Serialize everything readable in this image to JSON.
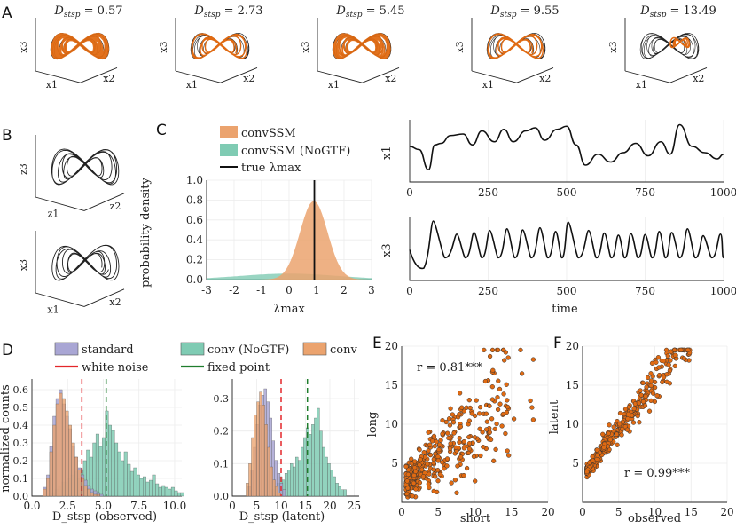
{
  "panels": {
    "A": "A",
    "B": "B",
    "C": "C",
    "D": "D",
    "E": "E",
    "F": "F"
  },
  "colors": {
    "orange": "#e06a12",
    "orange_fill": "#eba36e",
    "teal_fill": "#7fcbb3",
    "purple_fill": "#a9a6d4",
    "red": "#e3262a",
    "green": "#1f7d2d",
    "black": "#111111",
    "grid": "#ececec"
  },
  "panel_a": {
    "titles": [
      "D_stsp = 0.57",
      "D_stsp = 2.73",
      "D_stsp = 5.45",
      "D_stsp = 9.55",
      "D_stsp = 13.49"
    ],
    "title_values": [
      "0.57",
      "2.73",
      "5.45",
      "9.55",
      "13.49"
    ],
    "axis_labels": {
      "x1": "x1",
      "x2": "x2",
      "x3": "x3"
    },
    "orange_weight": [
      0.95,
      0.4,
      0.75,
      0.35,
      0.08
    ]
  },
  "panel_b": {
    "top_axes": {
      "vertical": "z3",
      "left": "z1",
      "right": "z2"
    },
    "bottom_axes": {
      "vertical": "x3",
      "left": "x1",
      "right": "x2"
    }
  },
  "chart_data": [
    {
      "id": "C-density",
      "type": "area",
      "title": "",
      "xlabel": "λmax",
      "ylabel": "probability density",
      "xlim": [
        -3,
        3
      ],
      "ylim": [
        0,
        1.0
      ],
      "xticks": [
        "-3",
        "-2",
        "-1",
        "0",
        "1",
        "2",
        "3"
      ],
      "yticks": [
        "0.0",
        "0.2",
        "0.4",
        "0.6",
        "0.8",
        "1.0"
      ],
      "legend": [
        "convSSM",
        "convSSM (NoGTF)",
        "true λmax"
      ],
      "series": [
        {
          "name": "convSSM",
          "mean": 0.9,
          "sd": 0.5,
          "peak": 0.79
        },
        {
          "name": "convSSM (NoGTF)",
          "mean": 0.0,
          "sd": 1.8,
          "peak": 0.06
        }
      ],
      "true_lambda_max": 0.92
    },
    {
      "id": "C-x1-trace",
      "type": "line",
      "ylabel": "x1",
      "xlim": [
        0,
        1000
      ],
      "xticks": [
        "0",
        "250",
        "500",
        "750",
        "1000"
      ],
      "x": [
        0,
        30,
        60,
        80,
        100,
        130,
        170,
        200,
        230,
        270,
        300,
        330,
        370,
        400,
        430,
        470,
        500,
        530,
        560,
        600,
        640,
        680,
        720,
        760,
        800,
        830,
        860,
        900,
        940,
        980,
        1000
      ],
      "y": [
        0.2,
        0.0,
        -1.3,
        0.3,
        0.4,
        0.9,
        1.0,
        0.3,
        1.2,
        0.5,
        1.3,
        0.5,
        1.2,
        1.4,
        0.6,
        1.3,
        1.5,
        0.3,
        -1.0,
        -0.3,
        -0.8,
        -0.2,
        0.4,
        -0.4,
        0.5,
        -0.3,
        1.6,
        0.2,
        -0.2,
        -0.6,
        -0.3
      ]
    },
    {
      "id": "C-x3-trace",
      "type": "line",
      "ylabel": "x3",
      "xlabel": "time",
      "xlim": [
        0,
        1000
      ],
      "xticks": [
        "0",
        "250",
        "500",
        "750",
        "1000"
      ],
      "peak_times": [
        75,
        150,
        205,
        255,
        310,
        360,
        415,
        465,
        505,
        570,
        620,
        665,
        705,
        750,
        795,
        835,
        885,
        935,
        990
      ],
      "peak_heights": [
        1.0,
        0.75,
        0.78,
        0.82,
        0.85,
        0.83,
        0.87,
        0.8,
        0.98,
        0.82,
        0.77,
        0.73,
        0.76,
        0.74,
        0.8,
        0.78,
        0.85,
        0.72,
        0.75
      ],
      "baseline": 0.28
    },
    {
      "id": "D-observed",
      "type": "bar",
      "xlabel": "D_stsp (observed)",
      "ylabel": "normalized counts",
      "xlim": [
        0,
        10.5
      ],
      "ylim": [
        0,
        0.66
      ],
      "xticks": [
        "0.0",
        "2.5",
        "5.0",
        "7.5",
        "10.0"
      ],
      "yticks": [
        "0.0",
        "0.1",
        "0.2",
        "0.3",
        "0.4",
        "0.5",
        "0.6"
      ],
      "bin_edges_start": 0.8,
      "bin_width": 0.22,
      "series": [
        {
          "name": "standard",
          "values": [
            0.05,
            0.12,
            0.28,
            0.45,
            0.55,
            0.6,
            0.52,
            0.45,
            0.38,
            0.28,
            0.22,
            0.16,
            0.12,
            0.09,
            0.06,
            0.04,
            0.03,
            0.02,
            0.01
          ]
        },
        {
          "name": "conv",
          "values": [
            0.04,
            0.1,
            0.25,
            0.4,
            0.52,
            0.58,
            0.55,
            0.48,
            0.4,
            0.3,
            0.22,
            0.15,
            0.1,
            0.06,
            0.04,
            0.02,
            0.01,
            0.01,
            0.0
          ]
        },
        {
          "name": "conv (NoGTF)",
          "start": 1.4,
          "values": [
            0.02,
            0.04,
            0.06,
            0.08,
            0.08,
            0.1,
            0.12,
            0.14,
            0.1,
            0.15,
            0.2,
            0.26,
            0.22,
            0.3,
            0.35,
            0.28,
            0.33,
            0.48,
            0.4,
            0.37,
            0.3,
            0.25,
            0.2,
            0.25,
            0.18,
            0.14,
            0.16,
            0.12,
            0.1,
            0.11,
            0.08,
            0.09,
            0.12,
            0.07,
            0.05,
            0.06,
            0.05,
            0.04,
            0.05,
            0.03,
            0.02,
            0.02
          ]
        }
      ],
      "vlines": [
        {
          "name": "white noise",
          "x": 3.5
        },
        {
          "name": "fixed point",
          "x": 5.2
        }
      ]
    },
    {
      "id": "D-latent",
      "type": "bar",
      "xlabel": "D_stsp (latent)",
      "xlim": [
        0,
        26
      ],
      "ylim": [
        0,
        0.36
      ],
      "xticks": [
        "0",
        "5",
        "10",
        "15",
        "20",
        "25"
      ],
      "yticks": [
        "0.0",
        "0.1",
        "0.2",
        "0.3"
      ],
      "bin_width": 0.55,
      "series": [
        {
          "name": "standard",
          "start": 3.2,
          "values": [
            0.03,
            0.08,
            0.15,
            0.22,
            0.28,
            0.31,
            0.33,
            0.29,
            0.24,
            0.17,
            0.11,
            0.07,
            0.04,
            0.02
          ]
        },
        {
          "name": "conv",
          "start": 2.8,
          "values": [
            0.04,
            0.1,
            0.18,
            0.25,
            0.29,
            0.32,
            0.28,
            0.22,
            0.15,
            0.09,
            0.05,
            0.03,
            0.01
          ]
        },
        {
          "name": "conv (NoGTF)",
          "start": 8.0,
          "values": [
            0.02,
            0.03,
            0.04,
            0.06,
            0.05,
            0.07,
            0.08,
            0.1,
            0.09,
            0.12,
            0.11,
            0.15,
            0.18,
            0.21,
            0.19,
            0.22,
            0.24,
            0.27,
            0.2,
            0.15,
            0.12,
            0.1,
            0.08,
            0.06,
            0.04,
            0.03,
            0.02,
            0.02
          ]
        }
      ],
      "vlines": [
        {
          "name": "white noise",
          "x": 10.0
        },
        {
          "name": "fixed point",
          "x": 15.4
        }
      ]
    },
    {
      "id": "E",
      "type": "scatter",
      "xlabel": "short",
      "ylabel": "long",
      "xlim": [
        0,
        20
      ],
      "ylim": [
        0,
        20
      ],
      "xticks": [
        "0",
        "5",
        "10",
        "15",
        "20"
      ],
      "yticks": [
        "5",
        "10",
        "15",
        "20"
      ],
      "annotation": "r =  0.81***",
      "n_points": 420,
      "trend": {
        "slope": 0.8,
        "intercept": 1.2,
        "spread": 0.35
      }
    },
    {
      "id": "F",
      "type": "scatter",
      "xlabel": "observed",
      "ylabel": "latent",
      "xlim": [
        0,
        20
      ],
      "ylim": [
        0,
        20
      ],
      "xticks": [
        "0",
        "5",
        "10",
        "15",
        "20"
      ],
      "yticks": [
        "5",
        "10",
        "15",
        "20"
      ],
      "annotation": "r =  0.99***",
      "n_points": 420,
      "trend": {
        "slope": 1.22,
        "intercept": 3.3,
        "spread": 0.09
      }
    }
  ],
  "legend_d": {
    "standard": "standard",
    "white_noise": "white noise",
    "conv_nogtf": "conv (NoGTF)",
    "fixed_point": "fixed point",
    "conv": "conv"
  }
}
